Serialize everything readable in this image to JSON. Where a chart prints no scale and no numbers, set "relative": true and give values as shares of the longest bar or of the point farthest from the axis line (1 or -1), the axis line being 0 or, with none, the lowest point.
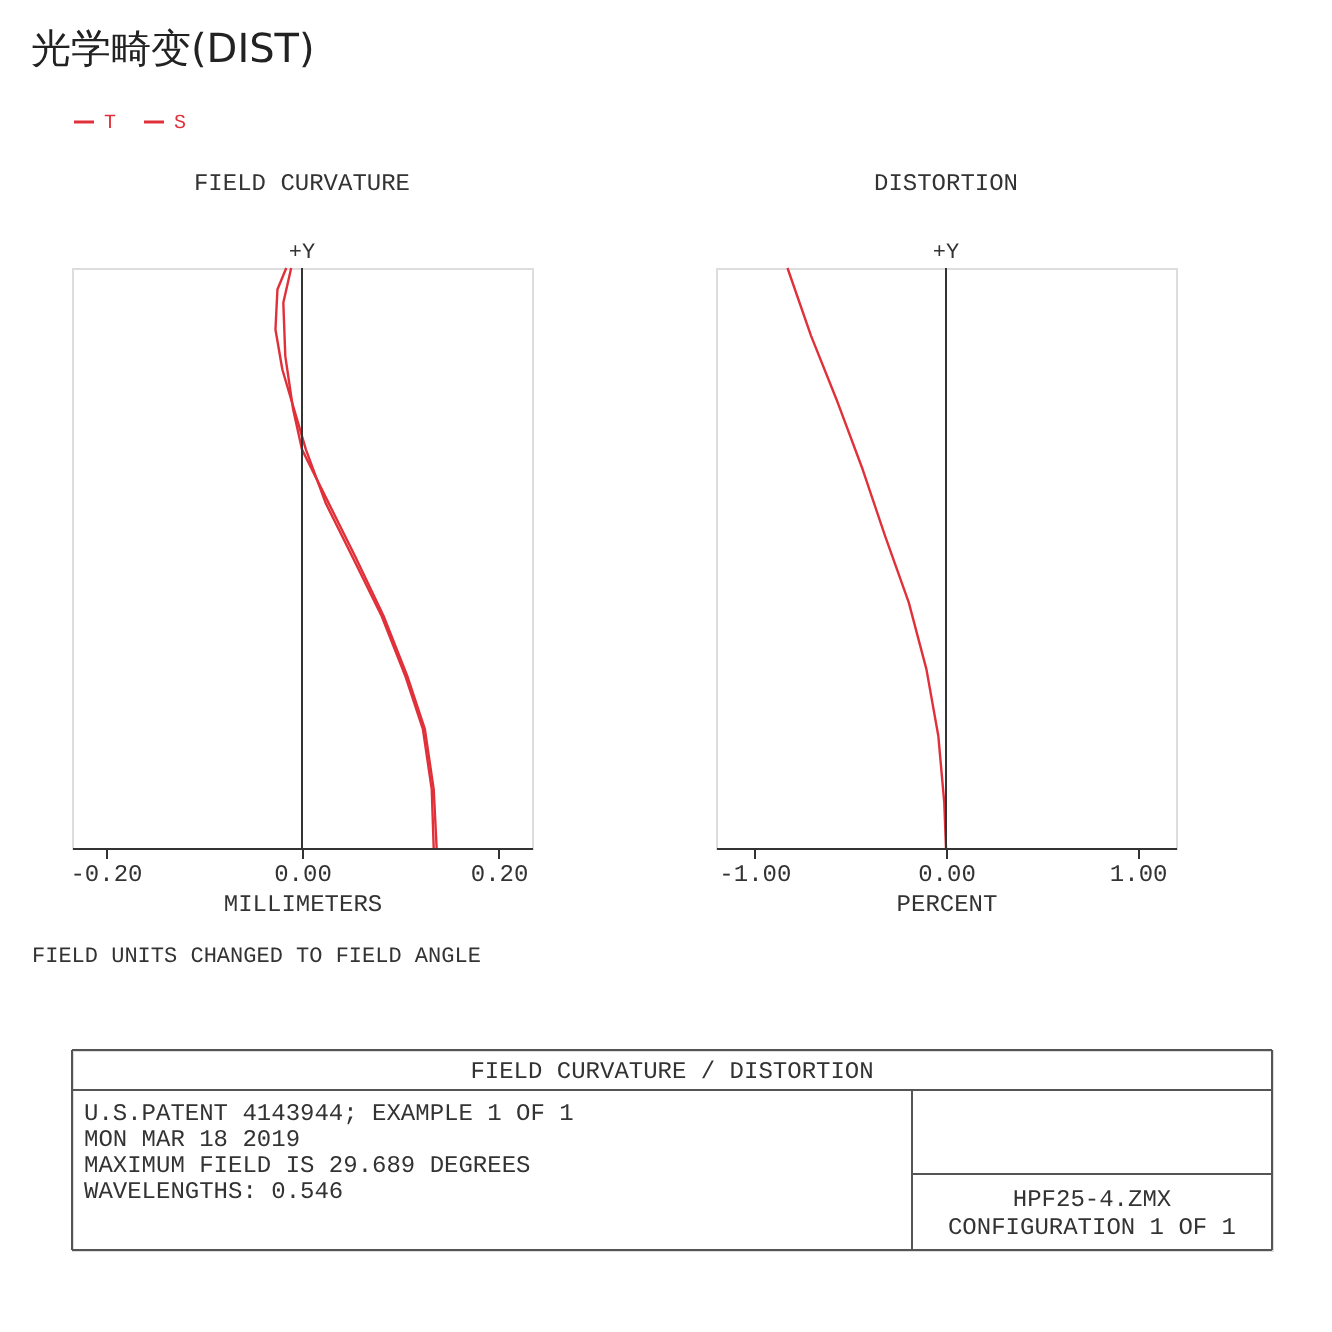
{
  "chart_data": [
    {
      "type": "other",
      "title": "光学畸变(DIST)"
    },
    {
      "type": "line",
      "title": "FIELD CURVATURE",
      "xlabel": "MILLIMETERS",
      "relative": true,
      "legend": "top",
      "grid": false,
      "xlim": [
        -0.234,
        0.234
      ],
      "xticks": [
        {
          "value": -0.2,
          "label": "-0.20"
        },
        {
          "value": 0,
          "label": "0.00"
        },
        {
          "value": 0.2,
          "label": "0.20"
        }
      ],
      "ref_lines": [
        {
          "axis": "x",
          "value": 0,
          "label": "+Y"
        }
      ],
      "annotations": [
        "FIELD UNITS CHANGED TO FIELD ANGLE"
      ],
      "series": [
        {
          "name": "T",
          "color": "#e0303a",
          "x": [
            0.134,
            0.132,
            0.123,
            0.105,
            0.081,
            0.051,
            0.024,
            0.004,
            -0.004,
            -0.02,
            -0.027,
            -0.025,
            -0.016
          ],
          "values": [
            0,
            0.101,
            0.205,
            0.297,
            0.4,
            0.503,
            0.595,
            0.687,
            0.733,
            0.825,
            0.894,
            0.963,
            1
          ]
        },
        {
          "name": "S",
          "color": "#e0303a",
          "x": [
            0.137,
            0.134,
            0.125,
            0.107,
            0.083,
            0.054,
            0.027,
            0,
            -0.009,
            -0.017,
            -0.019,
            -0.011
          ],
          "values": [
            0,
            0.101,
            0.205,
            0.297,
            0.4,
            0.503,
            0.595,
            0.687,
            0.756,
            0.848,
            0.94,
            1
          ]
        }
      ]
    },
    {
      "type": "line",
      "title": "DISTORTION",
      "xlabel": "PERCENT",
      "relative": true,
      "grid": false,
      "xlim": [
        -1.2,
        1.2
      ],
      "xticks": [
        {
          "value": -1,
          "label": "-1.00"
        },
        {
          "value": 0,
          "label": "0.00"
        },
        {
          "value": 1,
          "label": "1.00"
        }
      ],
      "ref_lines": [
        {
          "axis": "x",
          "value": 0,
          "label": "+Y"
        }
      ],
      "series": [
        {
          "color": "#e0303a",
          "x": [
            0,
            -0.009,
            -0.04,
            -0.102,
            -0.194,
            -0.318,
            -0.435,
            -0.565,
            -0.704,
            -0.827
          ],
          "values": [
            0,
            0.078,
            0.193,
            0.308,
            0.423,
            0.538,
            0.653,
            0.768,
            0.883,
            1
          ]
        }
      ]
    },
    {
      "type": "other",
      "title": "FIELD CURVATURE / DISTORTION",
      "annotations": [
        "U.S.PATENT 4143944; EXAMPLE 1 OF 1",
        "MON MAR 18 2019",
        "MAXIMUM FIELD IS 29.689 DEGREES",
        "WAVELENGTHS: 0.546",
        "HPF25-4.ZMX",
        "CONFIGURATION 1 OF 1"
      ]
    }
  ]
}
